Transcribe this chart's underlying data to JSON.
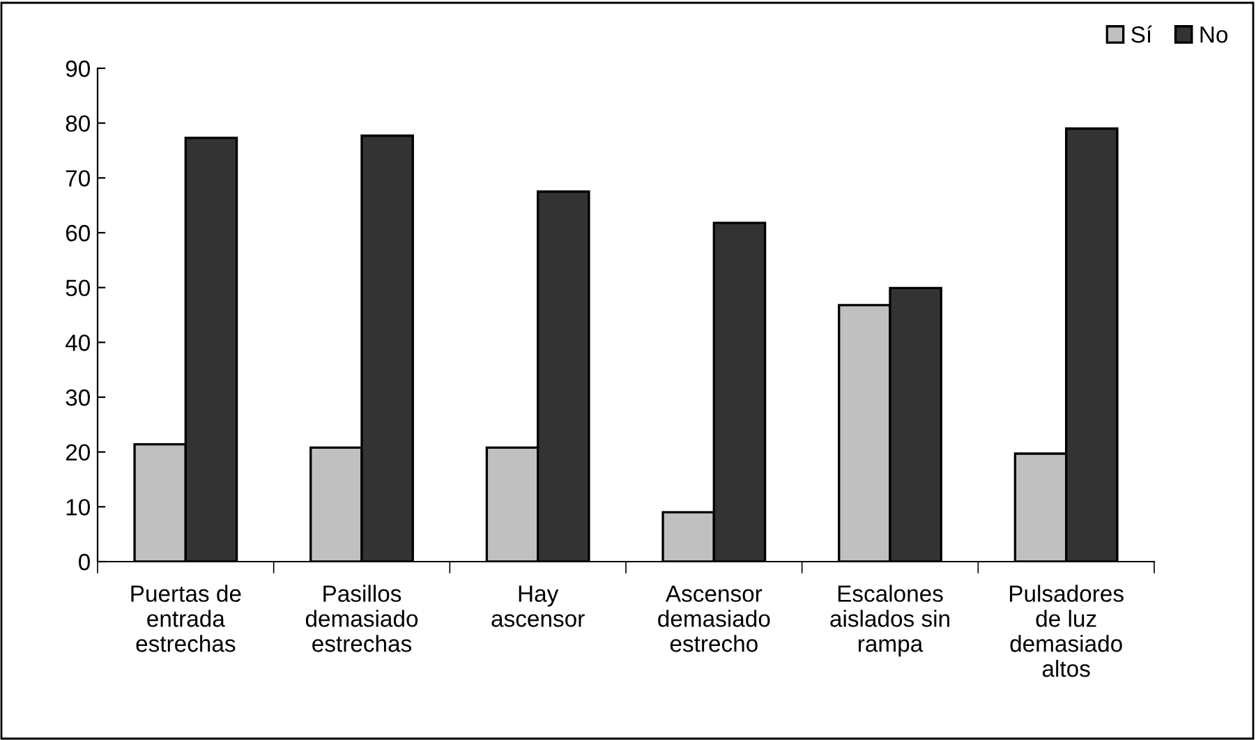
{
  "chart_data": {
    "type": "bar",
    "categories": [
      "Puertas de\nentrada\nestrechas",
      "Pasillos\ndemasiado\nestrechas",
      "Hay\nascensor",
      "Ascensor\ndemasiado\nestrecho",
      "Escalones\naislados sin\nrampa",
      "Pulsadores\nde luz\ndemasiado\naltos"
    ],
    "series": [
      {
        "name": "Sí",
        "color": "#c0c0c0",
        "values": [
          21.4,
          20.8,
          20.8,
          9.0,
          46.8,
          19.7
        ]
      },
      {
        "name": "No",
        "color": "#333333",
        "values": [
          77.3,
          77.7,
          67.5,
          61.8,
          49.9,
          79.0
        ]
      }
    ],
    "ylim": [
      0,
      90
    ],
    "yticks": [
      0,
      10,
      20,
      30,
      40,
      50,
      60,
      70,
      80,
      90
    ],
    "grid": false,
    "legend": "top right"
  }
}
